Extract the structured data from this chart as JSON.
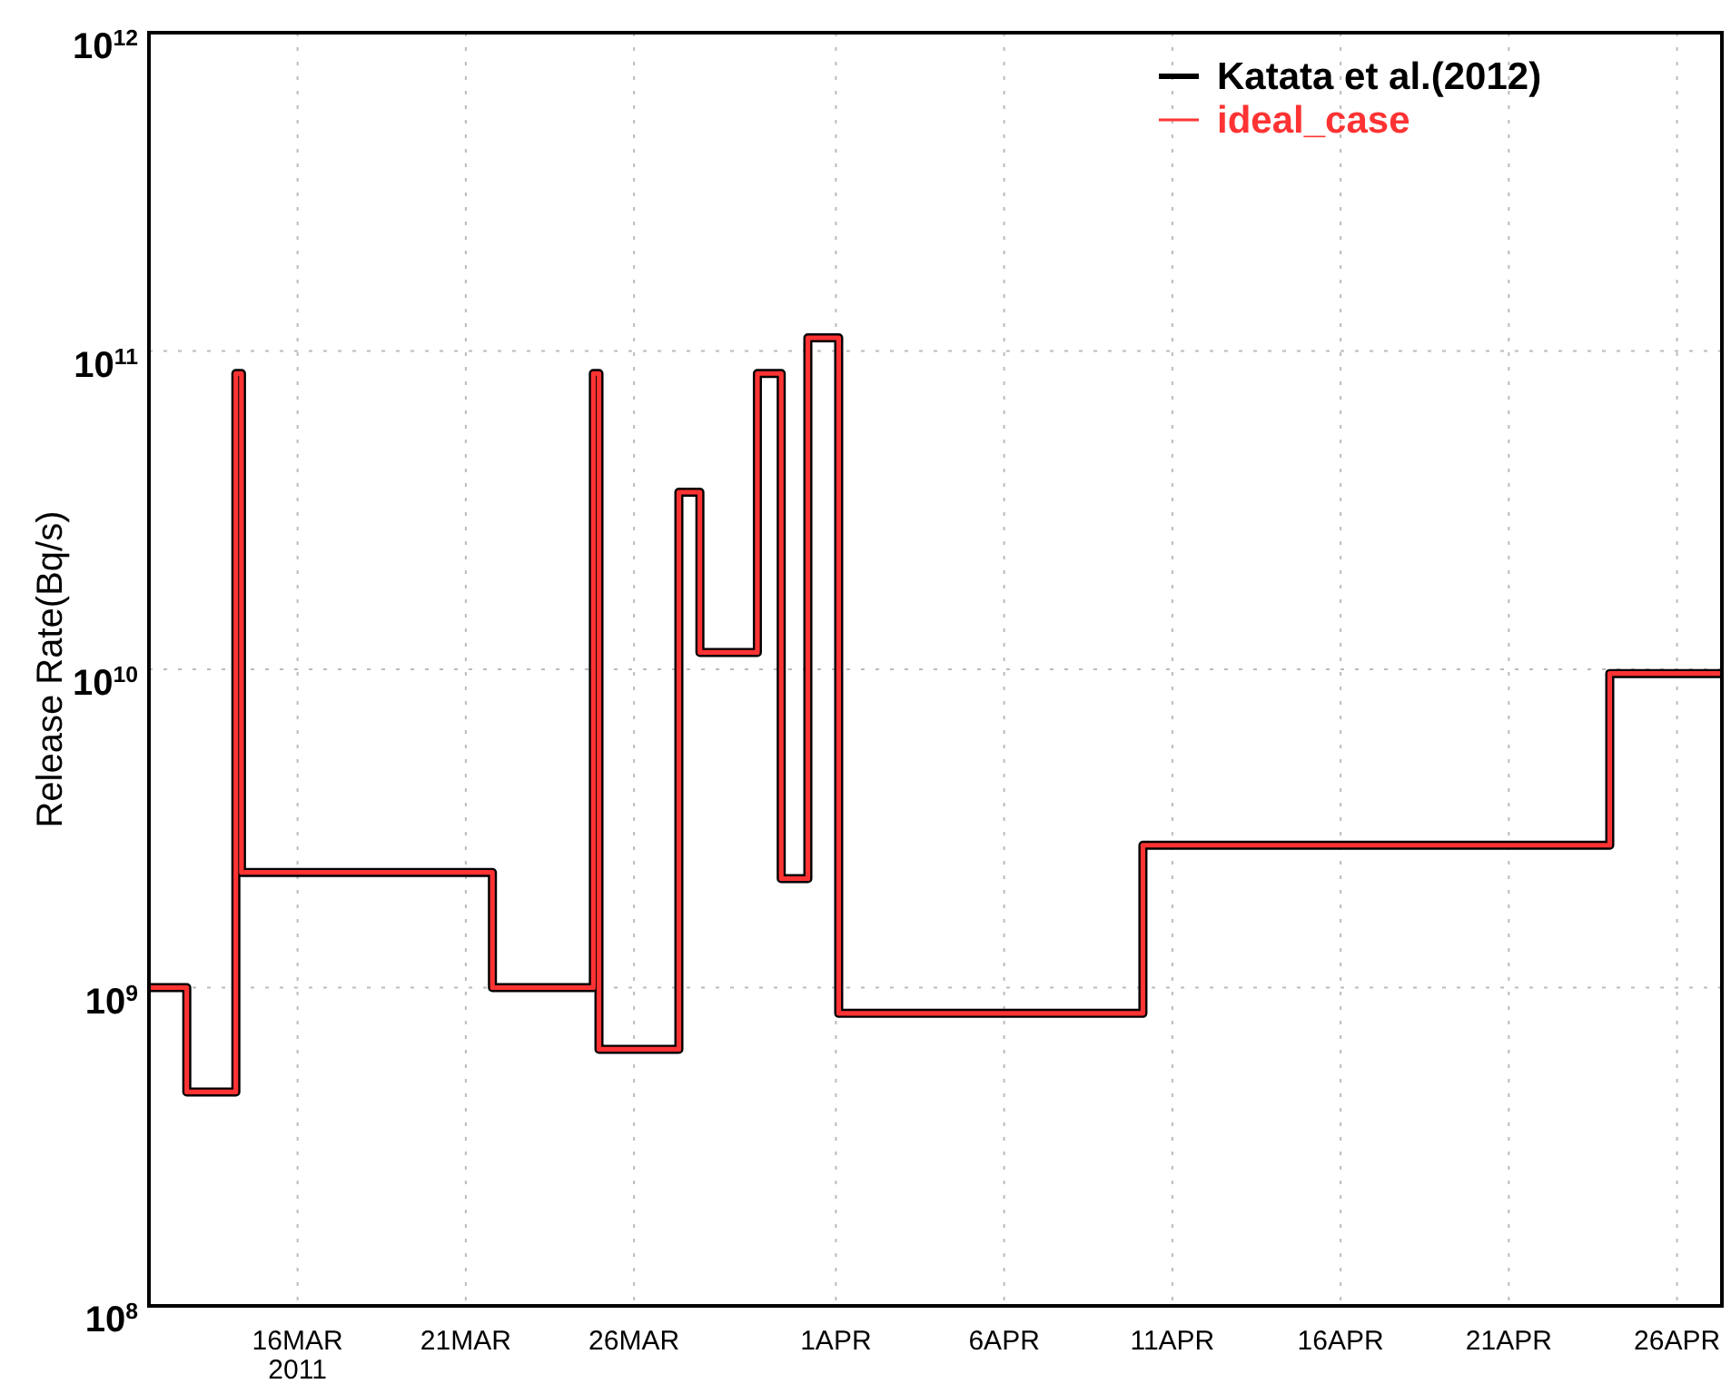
{
  "chart_data": {
    "type": "step",
    "ylabel": "Release Rate(Bq/s)",
    "log": true,
    "x": [
      "2011-03-11T14:00",
      "2011-03-12T17:00",
      "2011-03-14T04:00",
      "2011-03-14T08:00",
      "2011-03-21T19:00",
      "2011-03-24T19:00",
      "2011-03-24T23:00",
      "2011-03-27T08:00",
      "2011-03-27T23:00",
      "2011-03-29T16:00",
      "2011-03-30T09:00",
      "2011-03-31T04:00",
      "2011-04-01T02:00",
      "2011-04-10T03:00",
      "2011-04-24T00:00",
      "2011-04-27T08:00"
    ],
    "series": [
      {
        "name": "Katata et al.(2012)",
        "color": "#000000",
        "values": [
          1000000000.0,
          470000000.0,
          85000000000.0,
          2300000000.0,
          1000000000.0,
          85000000000.0,
          640000000.0,
          36000000000.0,
          11300000000.0,
          85000000000.0,
          2200000000.0,
          110000000000.0,
          830000000.0,
          2800000000.0,
          9700000000.0,
          9700000000.0
        ]
      },
      {
        "name": "ideal_case",
        "color": "#ff3333",
        "values": [
          1000000000.0,
          470000000.0,
          85000000000.0,
          2300000000.0,
          1000000000.0,
          85000000000.0,
          640000000.0,
          36000000000.0,
          11300000000.0,
          85000000000.0,
          2200000000.0,
          110000000000.0,
          830000000.0,
          2800000000.0,
          9700000000.0,
          9700000000.0
        ]
      }
    ],
    "xlim": [
      "2011-03-11T14:00",
      "2011-04-27T08:00"
    ],
    "xticks": [
      {
        "value": "2011-03-16",
        "label": "16MAR\n2011"
      },
      {
        "value": "2011-03-21",
        "label": "21MAR"
      },
      {
        "value": "2011-03-26",
        "label": "26MAR"
      },
      {
        "value": "2011-04-01",
        "label": "1APR"
      },
      {
        "value": "2011-04-06",
        "label": "6APR"
      },
      {
        "value": "2011-04-11",
        "label": "11APR"
      },
      {
        "value": "2011-04-16",
        "label": "16APR"
      },
      {
        "value": "2011-04-21",
        "label": "21APR"
      },
      {
        "value": "2011-04-26",
        "label": "26APR"
      }
    ],
    "ylim": [
      100000000.0,
      1000000000000.0
    ],
    "yticks": [
      {
        "value": 100000000.0,
        "label": "10$^{8}$"
      },
      {
        "value": 1000000000.0,
        "label": "10$^{9}$"
      },
      {
        "value": 10000000000.0,
        "label": "10$^{10}$"
      },
      {
        "value": 100000000000.0,
        "label": "10$^{11}$"
      },
      {
        "value": 1000000000000.0,
        "label": "10$^{12}$"
      }
    ],
    "grid": true,
    "legend": "top right",
    "line_style": "solid",
    "marker": "none"
  }
}
